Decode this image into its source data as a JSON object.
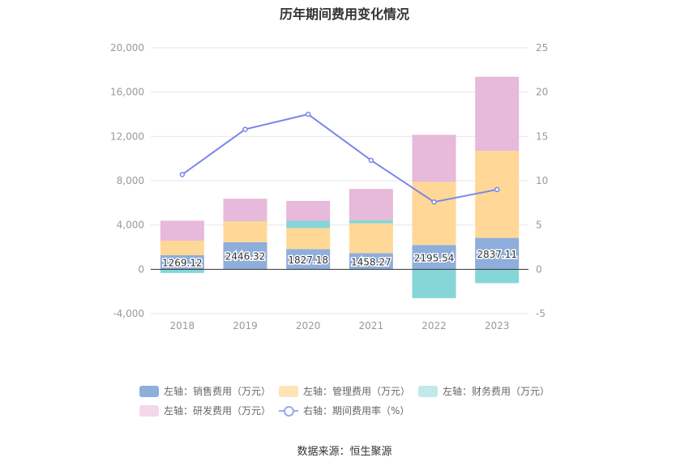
{
  "chart_data": {
    "type": "bar",
    "title": "历年期间费用变化情况",
    "categories": [
      "2018",
      "2019",
      "2020",
      "2021",
      "2022",
      "2023"
    ],
    "left_axis": {
      "ylim": [
        -4000,
        20000
      ],
      "ticks": [
        "-4,000",
        "0",
        "4,000",
        "8,000",
        "12,000",
        "16,000",
        "20,000"
      ],
      "tick_values": [
        -4000,
        0,
        4000,
        8000,
        12000,
        16000,
        20000
      ]
    },
    "right_axis": {
      "ylim": [
        -5,
        25
      ],
      "ticks": [
        "-5",
        "0",
        "5",
        "10",
        "15",
        "20",
        "25"
      ],
      "tick_values": [
        -5,
        0,
        5,
        10,
        15,
        20,
        25
      ]
    },
    "series": [
      {
        "name": "左轴：销售费用（万元）",
        "axis": "left",
        "kind": "bar",
        "color": "#8eaedc",
        "values": [
          1269.12,
          2446.32,
          1827.18,
          1458.27,
          2195.54,
          2837.11
        ]
      },
      {
        "name": "左轴：管理费用（万元）",
        "axis": "left",
        "kind": "bar",
        "color": "#ffd897",
        "values": [
          1320,
          1900,
          1900,
          2700,
          5700,
          7850
        ]
      },
      {
        "name": "左轴：财务费用（万元）",
        "axis": "left",
        "kind": "bar",
        "color": "#86d6d8",
        "values": [
          -330,
          30,
          650,
          300,
          -2600,
          -1250
        ]
      },
      {
        "name": "左轴：研发费用（万元）",
        "axis": "left",
        "kind": "bar",
        "color": "#e7b9da",
        "values": [
          1800,
          2000,
          1800,
          2800,
          4250,
          6700
        ]
      },
      {
        "name": "右轴：期间费用率（%）",
        "axis": "right",
        "kind": "line",
        "color": "#7b86ea",
        "values": [
          10.7,
          15.8,
          17.5,
          12.3,
          7.6,
          9.0
        ]
      }
    ],
    "data_labels": [
      "1269.12",
      "2446.32",
      "1827.18",
      "1458.27",
      "2195.54",
      "2837.11"
    ],
    "legend_position": "bottom",
    "grid": true
  },
  "legend_colors": [
    "#8eaedc",
    "#ffe3b4",
    "#bfe9ea",
    "#f2d8ea"
  ],
  "source": "数据来源：恒生聚源"
}
